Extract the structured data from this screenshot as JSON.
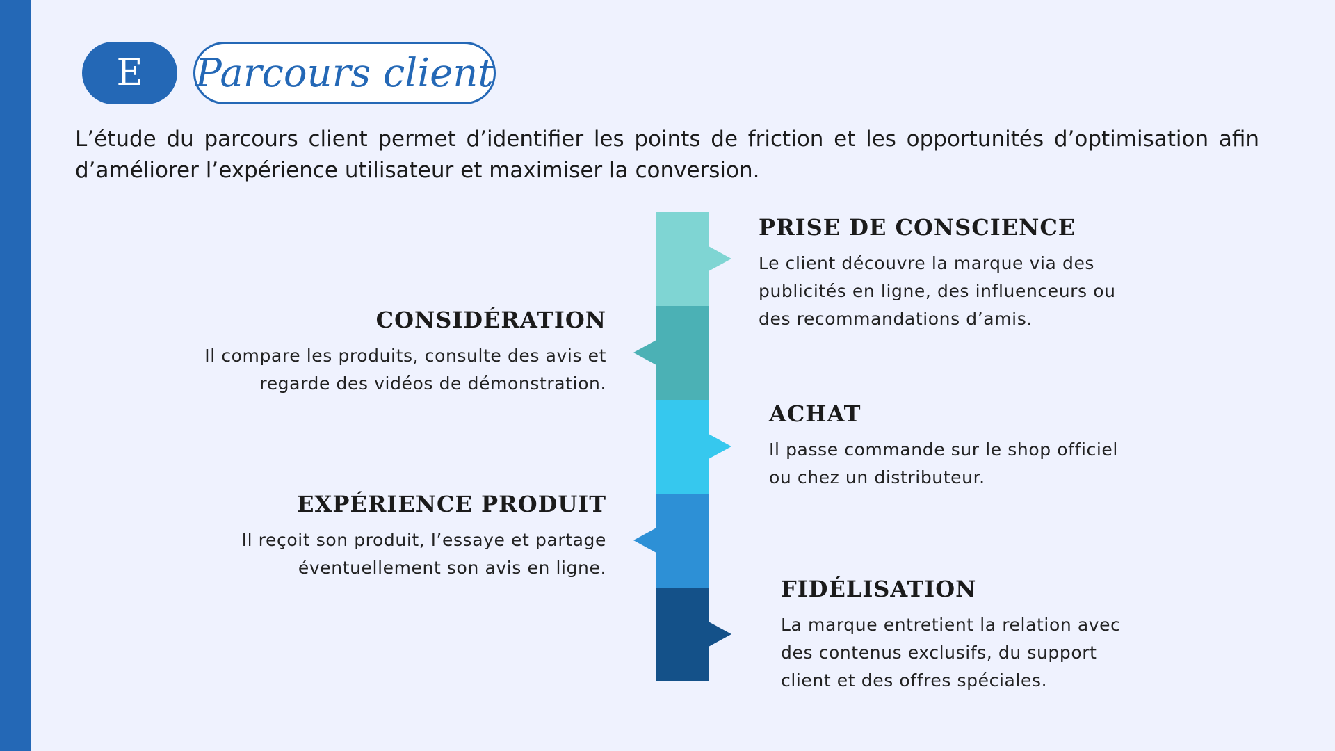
{
  "header": {
    "badge_letter": "E",
    "title": "Parcours client"
  },
  "intro_text": "L’étude du parcours client permet d’identifier les points de friction et les opportunités d’optimisation afin d’améliorer l’expérience utilisateur et maximiser la conversion.",
  "colors": {
    "accent": "#2468b6",
    "background": "#eff2fe",
    "step_colors": [
      "#7fd5d3",
      "#4bb1b5",
      "#36c8ee",
      "#2d90d6",
      "#145189"
    ]
  },
  "steps": [
    {
      "title": "PRISE DE CONSCIENCE",
      "lines": [
        "Le client découvre la marque via des",
        "publicités en ligne, des influenceurs ou",
        "des recommandations d’amis."
      ]
    },
    {
      "title": "CONSIDÉRATION",
      "lines": [
        "Il compare les produits, consulte des avis et",
        "regarde des vidéos de démonstration."
      ]
    },
    {
      "title": "ACHAT",
      "lines": [
        "Il passe commande sur le shop officiel",
        "ou chez un distributeur."
      ]
    },
    {
      "title": "EXPÉRIENCE PRODUIT",
      "lines": [
        "Il reçoit son produit, l’essaye et partage",
        "éventuellement son avis en ligne."
      ]
    },
    {
      "title": "FIDÉLISATION",
      "lines": [
        "La marque entretient la relation avec",
        "des contenus exclusifs, du support",
        "client et des offres spéciales."
      ]
    }
  ]
}
